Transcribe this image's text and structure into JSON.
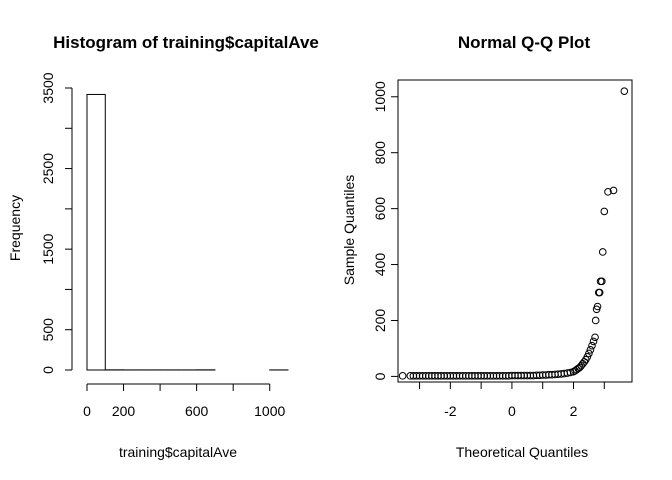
{
  "chart_data": [
    {
      "type": "bar",
      "subtype": "histogram",
      "title": "Histogram of training$capitalAve",
      "xlabel": "training$capitalAve",
      "ylabel": "Frequency",
      "bins": [
        {
          "start": 0,
          "end": 100,
          "count": 3420
        },
        {
          "start": 100,
          "end": 200,
          "count": 2
        },
        {
          "start": 200,
          "end": 300,
          "count": 1
        },
        {
          "start": 300,
          "end": 400,
          "count": 1
        },
        {
          "start": 400,
          "end": 500,
          "count": 1
        },
        {
          "start": 500,
          "end": 600,
          "count": 1
        },
        {
          "start": 600,
          "end": 700,
          "count": 2
        },
        {
          "start": 700,
          "end": 800,
          "count": 0
        },
        {
          "start": 800,
          "end": 900,
          "count": 0
        },
        {
          "start": 900,
          "end": 1000,
          "count": 0
        },
        {
          "start": 1000,
          "end": 1100,
          "count": 1
        }
      ],
      "xlim": [
        0,
        1100
      ],
      "ylim": [
        0,
        3500
      ],
      "xticks": [
        0,
        200,
        400,
        600,
        800,
        1000
      ],
      "xtick_labels": [
        "0",
        "200",
        "",
        "600",
        "",
        "1000"
      ],
      "yticks": [
        0,
        500,
        1000,
        1500,
        2000,
        2500,
        3000,
        3500
      ],
      "ytick_labels": [
        "0",
        "500",
        "",
        "1500",
        "",
        "2500",
        "",
        "3500"
      ],
      "grid": false,
      "colors": {
        "fill": "#ffffff",
        "stroke": "#000000"
      }
    },
    {
      "type": "scatter",
      "subtype": "qq",
      "title": "Normal Q-Q Plot",
      "xlabel": "Theoretical Quantiles",
      "ylabel": "Sample Quantiles",
      "xlim": [
        -3.7,
        3.9
      ],
      "ylim": [
        -20,
        1060
      ],
      "xticks": [
        -3,
        -2,
        -1,
        0,
        1,
        2,
        3
      ],
      "xtick_labels": [
        "",
        "-2",
        "",
        "0",
        "",
        "2",
        ""
      ],
      "yticks": [
        0,
        200,
        400,
        600,
        800,
        1000
      ],
      "ytick_labels": [
        "0",
        "200",
        "400",
        "600",
        "800",
        "1000"
      ],
      "grid": false,
      "marker": "open-circle",
      "points": {
        "x": [
          -3.55,
          -3.3,
          -3.2,
          -3.1,
          -3.0,
          -2.9,
          -2.8,
          -2.7,
          -2.6,
          -2.5,
          -2.4,
          -2.3,
          -2.2,
          -2.1,
          -2.0,
          -1.9,
          -1.8,
          -1.7,
          -1.6,
          -1.5,
          -1.4,
          -1.3,
          -1.2,
          -1.1,
          -1.0,
          -0.9,
          -0.8,
          -0.7,
          -0.6,
          -0.5,
          -0.4,
          -0.3,
          -0.2,
          -0.1,
          0.0,
          0.1,
          0.2,
          0.3,
          0.4,
          0.5,
          0.6,
          0.7,
          0.8,
          0.9,
          1.0,
          1.1,
          1.2,
          1.3,
          1.4,
          1.5,
          1.6,
          1.7,
          1.8,
          1.9,
          2.0,
          2.05,
          2.1,
          2.15,
          2.2,
          2.25,
          2.3,
          2.35,
          2.4,
          2.45,
          2.5,
          2.55,
          2.6,
          2.65,
          2.7,
          2.72,
          2.75,
          2.78,
          2.82,
          2.85,
          2.88,
          2.92,
          2.95,
          3.0,
          3.12,
          3.3,
          3.65
        ],
        "y": [
          2,
          2,
          2,
          2,
          2,
          2,
          2,
          2,
          2,
          2,
          2,
          2,
          2,
          2,
          2,
          2,
          2,
          2,
          2,
          2,
          2,
          2,
          2,
          2,
          2,
          2,
          2,
          2,
          2,
          2,
          2,
          2,
          2,
          2,
          3,
          3,
          3,
          3,
          3,
          3,
          3,
          3,
          4,
          4,
          5,
          5,
          6,
          6,
          7,
          8,
          9,
          10,
          12,
          14,
          17,
          20,
          24,
          28,
          32,
          38,
          45,
          52,
          60,
          70,
          82,
          95,
          110,
          125,
          140,
          200,
          240,
          250,
          300,
          300,
          340,
          340,
          445,
          590,
          660,
          665,
          1020
        ]
      },
      "colors": {
        "marker": "#000000"
      }
    }
  ]
}
